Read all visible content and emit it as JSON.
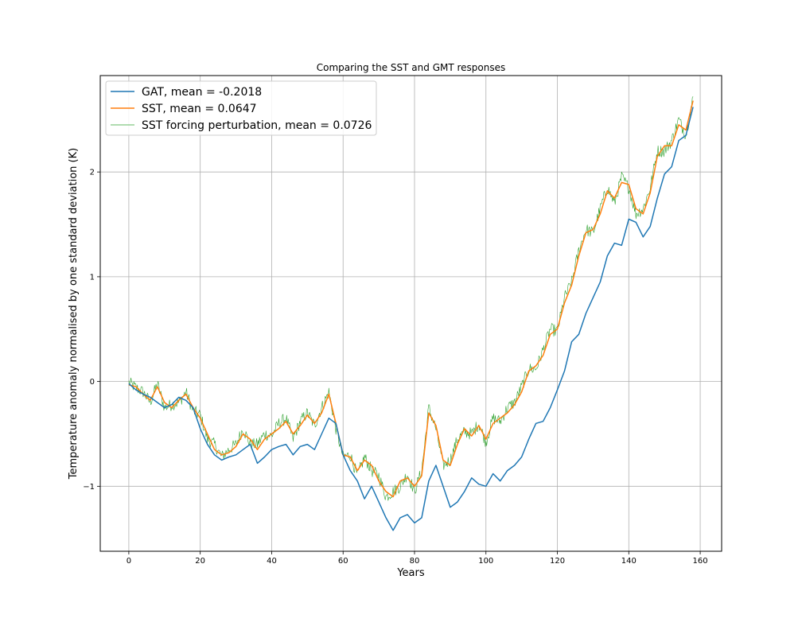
{
  "chart_data": {
    "type": "line",
    "title": "Comparing the SST and GMT responses",
    "xlabel": "Years",
    "ylabel": "Temperature anomaly normalised by one standard deviation (K)",
    "xlim": [
      -8,
      166
    ],
    "ylim": [
      -1.62,
      2.92
    ],
    "x_ticks": [
      0,
      20,
      40,
      60,
      80,
      100,
      120,
      140,
      160
    ],
    "y_ticks": [
      -1,
      0,
      1,
      2
    ],
    "grid": true,
    "legend_position": "top-left",
    "series": [
      {
        "name": "GAT, mean = -0.2018",
        "color": "#1f77b4",
        "width": 1.5,
        "x": [
          0,
          2,
          4,
          6,
          8,
          10,
          12,
          14,
          16,
          18,
          20,
          22,
          24,
          26,
          28,
          30,
          32,
          34,
          36,
          38,
          40,
          42,
          44,
          46,
          48,
          50,
          52,
          54,
          56,
          58,
          60,
          62,
          64,
          66,
          68,
          70,
          72,
          74,
          76,
          78,
          80,
          82,
          84,
          86,
          88,
          90,
          92,
          94,
          96,
          98,
          100,
          102,
          104,
          106,
          108,
          110,
          112,
          114,
          116,
          118,
          120,
          122,
          124,
          126,
          128,
          130,
          132,
          134,
          136,
          138,
          140,
          142,
          144,
          146,
          148,
          150,
          152,
          154,
          156,
          158
        ],
        "y": [
          -0.02,
          -0.08,
          -0.12,
          -0.15,
          -0.2,
          -0.25,
          -0.22,
          -0.15,
          -0.18,
          -0.25,
          -0.45,
          -0.6,
          -0.7,
          -0.75,
          -0.72,
          -0.7,
          -0.65,
          -0.6,
          -0.78,
          -0.72,
          -0.65,
          -0.62,
          -0.6,
          -0.7,
          -0.62,
          -0.6,
          -0.65,
          -0.5,
          -0.35,
          -0.4,
          -0.7,
          -0.85,
          -0.95,
          -1.12,
          -1.0,
          -1.15,
          -1.3,
          -1.42,
          -1.3,
          -1.27,
          -1.35,
          -1.3,
          -0.95,
          -0.8,
          -1.0,
          -1.2,
          -1.15,
          -1.05,
          -0.92,
          -0.98,
          -1.0,
          -0.88,
          -0.95,
          -0.85,
          -0.8,
          -0.72,
          -0.55,
          -0.4,
          -0.38,
          -0.25,
          -0.08,
          0.1,
          0.38,
          0.45,
          0.65,
          0.8,
          0.95,
          1.2,
          1.32,
          1.3,
          1.55,
          1.52,
          1.38,
          1.48,
          1.75,
          1.98,
          2.05,
          2.3,
          2.35,
          2.62
        ]
      },
      {
        "name": "SST, mean = 0.0647",
        "color": "#ff7f0e",
        "width": 1.5,
        "x": [
          0,
          2,
          4,
          6,
          8,
          10,
          12,
          14,
          16,
          18,
          20,
          22,
          24,
          26,
          28,
          30,
          32,
          34,
          36,
          38,
          40,
          42,
          44,
          46,
          48,
          50,
          52,
          54,
          56,
          58,
          60,
          62,
          64,
          66,
          68,
          70,
          72,
          74,
          76,
          78,
          80,
          82,
          84,
          86,
          88,
          90,
          92,
          94,
          96,
          98,
          100,
          102,
          104,
          106,
          108,
          110,
          112,
          114,
          116,
          118,
          120,
          122,
          124,
          126,
          128,
          130,
          132,
          134,
          136,
          138,
          140,
          142,
          144,
          146,
          148,
          150,
          152,
          154,
          156,
          158
        ],
        "y": [
          -0.03,
          -0.05,
          -0.12,
          -0.18,
          -0.05,
          -0.2,
          -0.25,
          -0.18,
          -0.12,
          -0.25,
          -0.35,
          -0.5,
          -0.65,
          -0.7,
          -0.68,
          -0.62,
          -0.5,
          -0.55,
          -0.65,
          -0.55,
          -0.5,
          -0.45,
          -0.38,
          -0.5,
          -0.42,
          -0.32,
          -0.4,
          -0.3,
          -0.12,
          -0.4,
          -0.7,
          -0.72,
          -0.85,
          -0.75,
          -0.8,
          -0.95,
          -1.05,
          -1.1,
          -0.95,
          -0.92,
          -1.0,
          -0.9,
          -0.3,
          -0.42,
          -0.75,
          -0.8,
          -0.6,
          -0.45,
          -0.52,
          -0.42,
          -0.55,
          -0.4,
          -0.35,
          -0.3,
          -0.22,
          -0.1,
          0.1,
          0.15,
          0.25,
          0.45,
          0.5,
          0.75,
          0.92,
          1.2,
          1.42,
          1.45,
          1.6,
          1.82,
          1.75,
          1.9,
          1.88,
          1.65,
          1.6,
          1.8,
          2.15,
          2.25,
          2.25,
          2.45,
          2.4,
          2.68
        ]
      },
      {
        "name": "SST forcing perturbation, mean = 0.0726",
        "color": "#2ca02c",
        "width": 0.6,
        "noisy": true,
        "x": [
          0,
          2,
          4,
          6,
          8,
          10,
          12,
          14,
          16,
          18,
          20,
          22,
          24,
          26,
          28,
          30,
          32,
          34,
          36,
          38,
          40,
          42,
          44,
          46,
          48,
          50,
          52,
          54,
          56,
          58,
          60,
          62,
          64,
          66,
          68,
          70,
          72,
          74,
          76,
          78,
          80,
          82,
          84,
          86,
          88,
          90,
          92,
          94,
          96,
          98,
          100,
          102,
          104,
          106,
          108,
          110,
          112,
          114,
          116,
          118,
          120,
          122,
          124,
          126,
          128,
          130,
          132,
          134,
          136,
          138,
          140,
          142,
          144,
          146,
          148,
          150,
          152,
          154,
          156,
          158
        ],
        "y": [
          -0.01,
          -0.06,
          -0.1,
          -0.2,
          -0.02,
          -0.25,
          -0.22,
          -0.2,
          -0.1,
          -0.28,
          -0.32,
          -0.55,
          -0.6,
          -0.72,
          -0.65,
          -0.6,
          -0.45,
          -0.6,
          -0.6,
          -0.5,
          -0.52,
          -0.4,
          -0.35,
          -0.55,
          -0.38,
          -0.3,
          -0.42,
          -0.25,
          -0.1,
          -0.45,
          -0.72,
          -0.7,
          -0.9,
          -0.72,
          -0.85,
          -0.9,
          -1.1,
          -1.05,
          -1.0,
          -0.88,
          -1.05,
          -0.85,
          -0.25,
          -0.45,
          -0.8,
          -0.75,
          -0.55,
          -0.48,
          -0.5,
          -0.4,
          -0.58,
          -0.35,
          -0.38,
          -0.25,
          -0.2,
          -0.05,
          0.12,
          0.12,
          0.3,
          0.5,
          0.48,
          0.8,
          0.95,
          1.25,
          1.45,
          1.42,
          1.65,
          1.85,
          1.7,
          1.95,
          1.85,
          1.6,
          1.65,
          1.85,
          2.2,
          2.2,
          2.3,
          2.5,
          2.35,
          2.72
        ]
      }
    ]
  }
}
